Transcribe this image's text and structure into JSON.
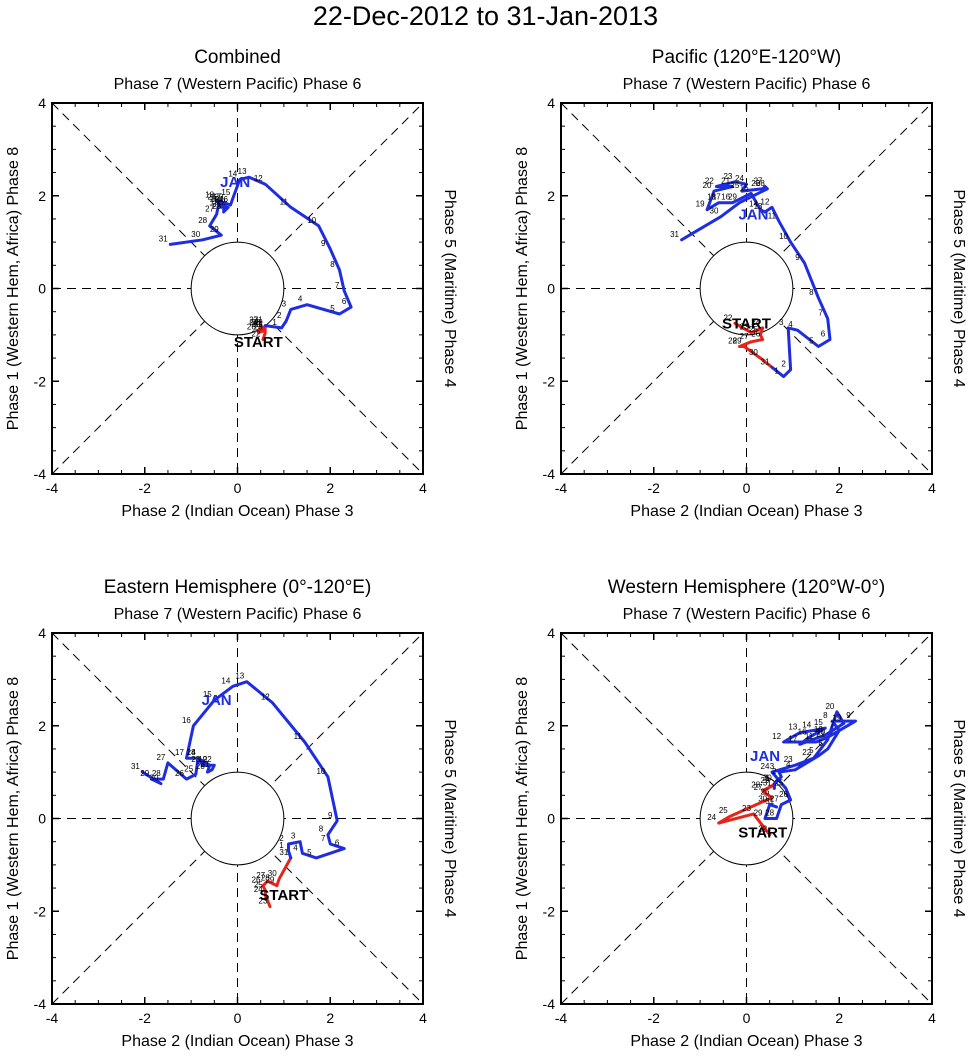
{
  "figure": {
    "title": "22-Dec-2012 to 31-Jan-2013",
    "axis_labels": {
      "top": "Phase 7 (Western Pacific) Phase 6",
      "bottom": "Phase 2 (Indian Ocean) Phase 3",
      "left": "Phase 1 (Western Hem, Africa) Phase 8",
      "right": "Phase 5 (Maritime) Phase 4"
    },
    "start_label": "START",
    "month_label": "JAN",
    "colors": {
      "december": "#e8231a",
      "january": "#1f2de0"
    }
  },
  "chart_data": [
    {
      "type": "line",
      "title": "Combined",
      "xlim": [
        -4,
        4
      ],
      "ylim": [
        -4,
        4
      ],
      "xticks": [
        "-4",
        "-2",
        "0",
        "2",
        "4"
      ],
      "yticks": [
        "-4",
        "-2",
        "0",
        "2",
        "4"
      ],
      "start_label_pos": [
        0.45,
        -1.15
      ],
      "jan_label_pos": [
        -0.05,
        2.3
      ],
      "series": [
        {
          "name": "December",
          "color": "#e8231a",
          "points": [
            [
              0.55,
              -1.1,
              "22"
            ],
            [
              0.6,
              -0.95,
              "23"
            ],
            [
              0.5,
              -0.85,
              "24"
            ],
            [
              0.6,
              -0.9,
              "25"
            ],
            [
              0.45,
              -0.95,
              "26"
            ],
            [
              0.5,
              -0.8,
              "27"
            ],
            [
              0.55,
              -0.85,
              "28"
            ],
            [
              0.6,
              -0.85,
              "29"
            ],
            [
              0.55,
              -0.9,
              "30"
            ],
            [
              0.6,
              -0.8,
              "31"
            ]
          ]
        },
        {
          "name": "January",
          "color": "#1f2de0",
          "points": [
            [
              0.6,
              -0.8,
              ""
            ],
            [
              0.95,
              -0.85,
              "1"
            ],
            [
              1.05,
              -0.7,
              "2"
            ],
            [
              1.15,
              -0.45,
              "3"
            ],
            [
              1.5,
              -0.35,
              "4"
            ],
            [
              2.2,
              -0.55,
              "5"
            ],
            [
              2.45,
              -0.4,
              "6"
            ],
            [
              2.3,
              -0.05,
              "7"
            ],
            [
              2.2,
              0.4,
              "8"
            ],
            [
              2.0,
              0.85,
              "9"
            ],
            [
              1.75,
              1.35,
              "10"
            ],
            [
              1.15,
              1.75,
              "11"
            ],
            [
              0.6,
              2.25,
              "12"
            ],
            [
              0.25,
              2.4,
              "13"
            ],
            [
              0.05,
              2.35,
              "14"
            ],
            [
              -0.1,
              1.95,
              "15"
            ],
            [
              -0.15,
              1.8,
              "16"
            ],
            [
              -0.3,
              1.85,
              "17"
            ],
            [
              -0.45,
              1.9,
              "18"
            ],
            [
              -0.35,
              1.75,
              "19"
            ],
            [
              -0.25,
              1.85,
              "20"
            ],
            [
              -0.3,
              1.7,
              "21"
            ],
            [
              -0.2,
              1.75,
              "22"
            ],
            [
              -0.3,
              1.65,
              "23"
            ],
            [
              -0.25,
              1.8,
              "24"
            ],
            [
              -0.35,
              1.8,
              "25"
            ],
            [
              -0.4,
              1.85,
              "26"
            ],
            [
              -0.45,
              1.6,
              "27"
            ],
            [
              -0.6,
              1.35,
              "28"
            ],
            [
              -0.35,
              1.15,
              "29"
            ],
            [
              -0.75,
              1.05,
              "30"
            ],
            [
              -1.45,
              0.95,
              "31"
            ]
          ]
        }
      ]
    },
    {
      "type": "line",
      "title": "Pacific (120°E-120°W)",
      "xlim": [
        -4,
        4
      ],
      "ylim": [
        -4,
        4
      ],
      "xticks": [
        "-4",
        "-2",
        "0",
        "2",
        "4"
      ],
      "yticks": [
        "-4",
        "-2",
        "0",
        "2",
        "4"
      ],
      "start_label_pos": [
        0.0,
        -0.75
      ],
      "jan_label_pos": [
        0.15,
        1.6
      ],
      "series": [
        {
          "name": "December",
          "color": "#e8231a",
          "points": [
            [
              -0.25,
              -0.75,
              "22"
            ],
            [
              0.1,
              -0.95,
              "23"
            ],
            [
              0.35,
              -0.85,
              "24"
            ],
            [
              0.3,
              -1.0,
              "25"
            ],
            [
              0.35,
              -1.1,
              "26"
            ],
            [
              0.1,
              -1.15,
              "27"
            ],
            [
              -0.15,
              -1.25,
              "28"
            ],
            [
              -0.05,
              -1.25,
              "29"
            ],
            [
              0.3,
              -1.5,
              "30"
            ],
            [
              0.55,
              -1.7,
              "31"
            ]
          ]
        },
        {
          "name": "January",
          "color": "#1f2de0",
          "points": [
            [
              0.55,
              -1.7,
              ""
            ],
            [
              0.8,
              -1.9,
              "1"
            ],
            [
              0.95,
              -1.75,
              "2"
            ],
            [
              0.9,
              -0.85,
              "3"
            ],
            [
              1.1,
              -0.9,
              "4"
            ],
            [
              1.55,
              -1.25,
              "5"
            ],
            [
              1.8,
              -1.1,
              "6"
            ],
            [
              1.75,
              -0.65,
              "7"
            ],
            [
              1.55,
              -0.2,
              "8"
            ],
            [
              1.25,
              0.55,
              "9"
            ],
            [
              0.95,
              1.0,
              "10"
            ],
            [
              0.7,
              1.45,
              "11"
            ],
            [
              0.55,
              1.75,
              "12"
            ],
            [
              0.4,
              1.65,
              "13"
            ],
            [
              0.3,
              1.7,
              "14"
            ],
            [
              0.1,
              2.05,
              "15"
            ],
            [
              -0.3,
              1.85,
              "16"
            ],
            [
              -0.5,
              1.85,
              "17"
            ],
            [
              -0.6,
              1.85,
              "18"
            ],
            [
              -0.85,
              1.7,
              "19"
            ],
            [
              -0.7,
              2.1,
              "20"
            ],
            [
              -0.3,
              2.2,
              "21"
            ],
            [
              -0.65,
              2.2,
              "22"
            ],
            [
              -0.25,
              2.3,
              "23"
            ],
            [
              0.0,
              2.25,
              "24"
            ],
            [
              -0.1,
              2.1,
              "25"
            ],
            [
              0.35,
              2.15,
              "26"
            ],
            [
              0.4,
              2.2,
              "27"
            ],
            [
              0.45,
              2.15,
              "28"
            ],
            [
              -0.15,
              1.85,
              "29"
            ],
            [
              -0.55,
              1.55,
              "30"
            ],
            [
              -1.4,
              1.05,
              "31"
            ]
          ]
        }
      ]
    },
    {
      "type": "line",
      "title": "Eastern Hemisphere (0°-120°E)",
      "xlim": [
        -4,
        4
      ],
      "ylim": [
        -4,
        4
      ],
      "xticks": [
        "-4",
        "-2",
        "0",
        "2",
        "4"
      ],
      "yticks": [
        "-4",
        "-2",
        "0",
        "2",
        "4"
      ],
      "start_label_pos": [
        1.0,
        -1.65
      ],
      "jan_label_pos": [
        -0.45,
        2.55
      ],
      "series": [
        {
          "name": "December",
          "color": "#e8231a",
          "points": [
            [
              0.7,
              -1.9,
              "23"
            ],
            [
              0.6,
              -1.65,
              "24"
            ],
            [
              0.6,
              -1.55,
              "25"
            ],
            [
              0.55,
              -1.45,
              "26"
            ],
            [
              0.65,
              -1.35,
              "27"
            ],
            [
              0.75,
              -1.4,
              "28"
            ],
            [
              0.85,
              -1.45,
              "29"
            ],
            [
              0.9,
              -1.3,
              "30"
            ],
            [
              1.15,
              -0.85,
              "31"
            ]
          ]
        },
        {
          "name": "January",
          "color": "#1f2de0",
          "points": [
            [
              1.15,
              -0.85,
              ""
            ],
            [
              1.1,
              -0.7,
              "1"
            ],
            [
              1.1,
              -0.55,
              "2"
            ],
            [
              1.35,
              -0.5,
              "3"
            ],
            [
              1.4,
              -0.75,
              "4"
            ],
            [
              1.7,
              -0.85,
              "5"
            ],
            [
              2.3,
              -0.65,
              "6"
            ],
            [
              2.0,
              -0.55,
              "7"
            ],
            [
              1.95,
              -0.35,
              "8"
            ],
            [
              2.15,
              -0.05,
              "9"
            ],
            [
              1.95,
              0.9,
              "10"
            ],
            [
              1.45,
              1.65,
              "11"
            ],
            [
              0.75,
              2.5,
              "12"
            ],
            [
              0.2,
              2.95,
              "13"
            ],
            [
              -0.1,
              2.85,
              "14"
            ],
            [
              -0.5,
              2.55,
              "15"
            ],
            [
              -0.95,
              2.0,
              "16"
            ],
            [
              -1.1,
              1.3,
              "17"
            ],
            [
              -0.85,
              1.3,
              "18"
            ],
            [
              -0.6,
              1.15,
              "19"
            ],
            [
              -0.65,
              1.0,
              "20"
            ],
            [
              -0.55,
              1.05,
              "21"
            ],
            [
              -0.5,
              1.15,
              "22"
            ],
            [
              -0.75,
              1.15,
              "23"
            ],
            [
              -0.85,
              1.3,
              "24"
            ],
            [
              -0.9,
              0.95,
              "25"
            ],
            [
              -1.1,
              0.85,
              "26"
            ],
            [
              -1.5,
              1.2,
              "27"
            ],
            [
              -1.6,
              0.85,
              "28"
            ],
            [
              -1.85,
              0.85,
              "29"
            ],
            [
              -1.65,
              0.75,
              "30"
            ],
            [
              -2.05,
              1.0,
              "31"
            ]
          ]
        }
      ]
    },
    {
      "type": "line",
      "title": "Western Hemisphere (120°W-0°)",
      "xlim": [
        -4,
        4
      ],
      "ylim": [
        -4,
        4
      ],
      "xticks": [
        "-4",
        "-2",
        "0",
        "2",
        "4"
      ],
      "yticks": [
        "-4",
        "-2",
        "0",
        "2",
        "4"
      ],
      "start_label_pos": [
        0.35,
        -0.3
      ],
      "jan_label_pos": [
        0.4,
        1.35
      ],
      "series": [
        {
          "name": "December",
          "color": "#e8231a",
          "points": [
            [
              0.5,
              -0.35,
              "22"
            ],
            [
              0.15,
              0.1,
              "23"
            ],
            [
              -0.6,
              -0.1,
              "24"
            ],
            [
              -0.35,
              0.05,
              "25"
            ],
            [
              0.55,
              0.45,
              "26"
            ],
            [
              0.4,
              0.55,
              "27"
            ],
            [
              0.35,
              0.6,
              "28"
            ],
            [
              0.55,
              0.7,
              "29"
            ],
            [
              0.6,
              0.75,
              "30"
            ],
            [
              0.6,
              0.65,
              "31"
            ]
          ]
        },
        {
          "name": "January",
          "color": "#1f2de0",
          "points": [
            [
              0.6,
              0.65,
              ""
            ],
            [
              0.6,
              0.75,
              "1"
            ],
            [
              0.75,
              0.9,
              "2"
            ],
            [
              0.7,
              1.0,
              "3"
            ],
            [
              1.05,
              1.05,
              "4"
            ],
            [
              1.55,
              1.35,
              "5"
            ],
            [
              1.75,
              1.5,
              "6"
            ],
            [
              2.0,
              1.9,
              "7"
            ],
            [
              1.85,
              2.1,
              "8"
            ],
            [
              2.35,
              2.1,
              "9"
            ],
            [
              1.75,
              1.75,
              "10"
            ],
            [
              1.5,
              1.65,
              "11"
            ],
            [
              0.8,
              1.65,
              "12"
            ],
            [
              1.15,
              1.85,
              "13"
            ],
            [
              1.45,
              1.9,
              "14"
            ],
            [
              1.7,
              1.95,
              "15"
            ],
            [
              1.35,
              1.75,
              "16"
            ],
            [
              1.15,
              1.6,
              "17"
            ],
            [
              1.7,
              1.8,
              "18"
            ],
            [
              2.1,
              2.05,
              "19"
            ],
            [
              1.95,
              2.3,
              "20"
            ],
            [
              1.75,
              1.7,
              "21"
            ],
            [
              1.45,
              1.3,
              "22"
            ],
            [
              1.05,
              1.15,
              "23"
            ],
            [
              0.55,
              1.0,
              "24"
            ],
            [
              0.85,
              0.65,
              "25"
            ],
            [
              0.95,
              0.4,
              "26"
            ],
            [
              0.75,
              0.3,
              "27"
            ],
            [
              0.65,
              0.0,
              "28"
            ],
            [
              0.4,
              0.0,
              "29"
            ],
            [
              0.5,
              0.3,
              "30"
            ],
            [
              0.65,
              0.25,
              "31"
            ]
          ]
        }
      ]
    }
  ]
}
